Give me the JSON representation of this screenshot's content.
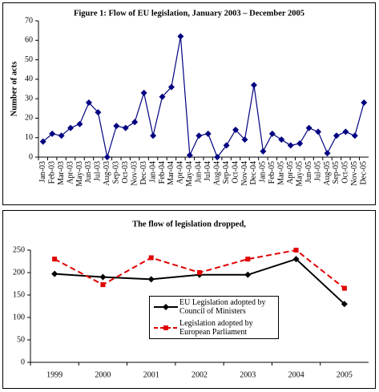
{
  "chart_data": [
    {
      "type": "line",
      "title": "Figure 1: Flow of EU legislation, January 2003 – December 2005",
      "y_label": "Number of acts",
      "categories": [
        "Jan-03",
        "Feb-03",
        "Mar-03",
        "Apr-03",
        "May-03",
        "Jun-03",
        "Jul-03",
        "Aug-03",
        "Sep-03",
        "Oct-03",
        "Nov-03",
        "Dec-03",
        "Jan-04",
        "Feb-04",
        "Mar-04",
        "Apr-04",
        "May-04",
        "Jun-04",
        "Jul-04",
        "Aug-04",
        "Sep-04",
        "Oct-04",
        "Nov-04",
        "Dec-04",
        "Jan-05",
        "Feb-05",
        "Mar-05",
        "Apr-05",
        "May-05",
        "Jun-05",
        "Jul-05",
        "Aug-05",
        "Sep-05",
        "Oct-05",
        "Nov-05",
        "Dec-05"
      ],
      "values": [
        8,
        12,
        11,
        15,
        17,
        28,
        23,
        0,
        16,
        15,
        18,
        33,
        11,
        31,
        36,
        62,
        1,
        11,
        12,
        0,
        6,
        14,
        9,
        37,
        3,
        12,
        9,
        6,
        7,
        15,
        13,
        2,
        11,
        13,
        11,
        28
      ],
      "color": "#000080",
      "marker": "diamond",
      "ylim": [
        0,
        70
      ],
      "yticks": [
        0,
        10,
        20,
        30,
        40,
        50,
        60,
        70
      ]
    },
    {
      "type": "line",
      "title": "The flow of legislation dropped,",
      "categories": [
        "1999",
        "2000",
        "2001",
        "2002",
        "2003",
        "2004",
        "2005"
      ],
      "series": [
        {
          "name": "EU Legislation adopted by Council of Ministers",
          "color": "#000000",
          "marker": "diamond",
          "dash": false,
          "values": [
            197,
            190,
            185,
            195,
            195,
            230,
            130
          ]
        },
        {
          "name": "Legislation adopted by European Parliament",
          "color": "#e00000",
          "marker": "square",
          "dash": true,
          "values": [
            230,
            173,
            233,
            200,
            230,
            250,
            165
          ]
        }
      ],
      "ylim": [
        0,
        250
      ],
      "yticks": [
        0,
        50,
        100,
        150,
        200,
        250
      ]
    }
  ]
}
